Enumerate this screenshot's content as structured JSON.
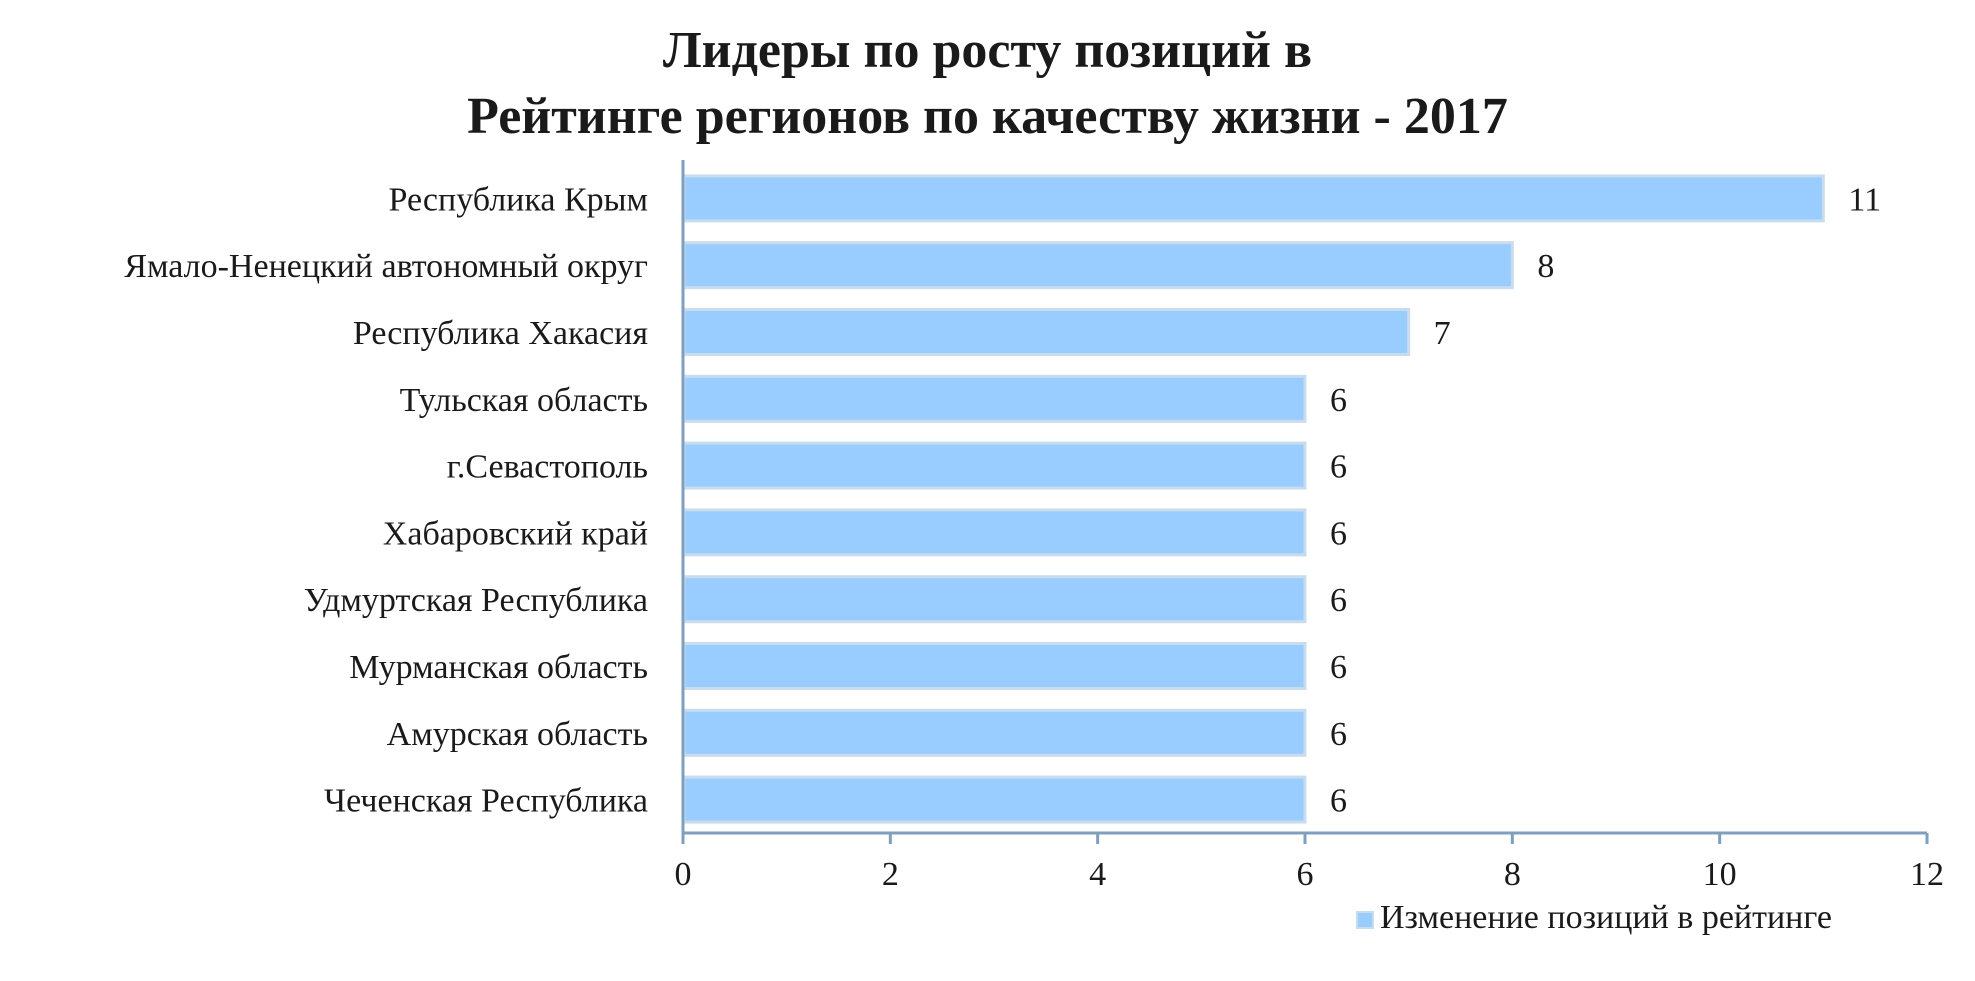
{
  "chart_data": {
    "type": "bar",
    "orientation": "horizontal",
    "title_lines": [
      "Лидеры по росту позиций в",
      "Рейтинге регионов по качеству жизни - 2017"
    ],
    "categories": [
      "Республика Крым",
      "Ямало-Ненецкий автономный округ",
      "Республика Хакасия",
      "Тульская область",
      "г.Севастополь",
      "Хабаровский край",
      "Удмуртская Республика",
      "Мурманская область",
      "Амурская область",
      "Чеченская Республика"
    ],
    "series": [
      {
        "name": "Изменение позиций в рейтинге",
        "values": [
          11,
          8,
          7,
          6,
          6,
          6,
          6,
          6,
          6,
          6
        ]
      }
    ],
    "xlim": [
      0,
      12
    ],
    "xticks": [
      0,
      2,
      4,
      6,
      8,
      10,
      12
    ],
    "grid": false,
    "legend_position": "bottom-right",
    "colors": {
      "bar_fill": "#99ccff",
      "bar_edge": "#c9dcee",
      "axis": "#7f9fbf"
    }
  }
}
